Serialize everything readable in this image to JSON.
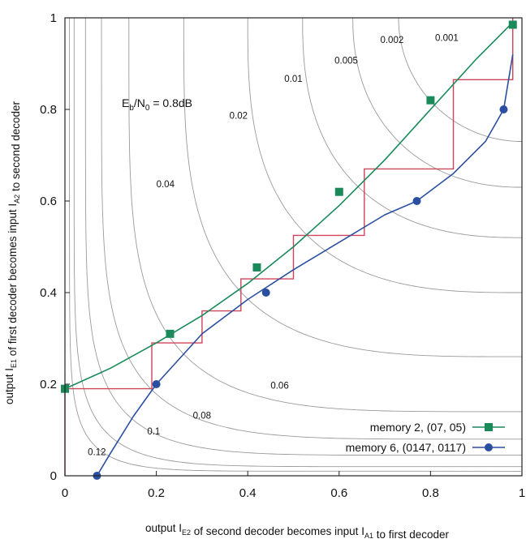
{
  "chart_data": {
    "type": "line",
    "title": "",
    "xlabel": "output I_E2 of second decoder becomes input I_A1 to first decoder",
    "ylabel": "output I_E1 of first decoder becomes input I_A2 to second decoder",
    "xlim": [
      0,
      1
    ],
    "ylim": [
      0,
      1
    ],
    "x_ticks": [
      "0",
      "0.2",
      "0.4",
      "0.6",
      "0.8",
      "1"
    ],
    "y_ticks": [
      "0",
      "0.2",
      "0.4",
      "0.6",
      "0.8",
      "1"
    ],
    "grid": false,
    "annotation": "E_b/N_0 = 0.8dB",
    "contour_labels": [
      "0.001",
      "0.002",
      "0.005",
      "0.01",
      "0.02",
      "0.04",
      "0.06",
      "0.08",
      "0.1",
      "0.12"
    ],
    "contour_levels": [
      0.12,
      0.1,
      0.08,
      0.06,
      0.04,
      0.02,
      0.01,
      0.005,
      0.002,
      0.001
    ],
    "legend_position": "bottom-right",
    "series": [
      {
        "name": "memory 2, (07, 05)",
        "color": "#1a8a5a",
        "marker": "square",
        "x": [
          0,
          0.1,
          0.2,
          0.3,
          0.4,
          0.5,
          0.6,
          0.7,
          0.8,
          0.9,
          0.98
        ],
        "y": [
          0.19,
          0.235,
          0.29,
          0.35,
          0.42,
          0.5,
          0.59,
          0.69,
          0.8,
          0.91,
          0.99
        ],
        "marker_x": [
          0,
          0.23,
          0.42,
          0.6,
          0.8,
          0.98
        ],
        "marker_y": [
          0.19,
          0.31,
          0.455,
          0.62,
          0.82,
          0.985
        ]
      },
      {
        "name": "memory 6, (0147, 0117)",
        "color": "#2b4fa0",
        "marker": "circle",
        "x": [
          0.07,
          0.1,
          0.15,
          0.2,
          0.3,
          0.4,
          0.5,
          0.6,
          0.7,
          0.77,
          0.85,
          0.92,
          0.96,
          0.98
        ],
        "y": [
          0.0,
          0.05,
          0.13,
          0.2,
          0.31,
          0.385,
          0.45,
          0.51,
          0.57,
          0.6,
          0.66,
          0.73,
          0.8,
          0.92
        ],
        "marker_x": [
          0.07,
          0.2,
          0.44,
          0.77,
          0.96
        ],
        "marker_y": [
          0.0,
          0.2,
          0.4,
          0.6,
          0.8
        ]
      }
    ],
    "trajectory": {
      "color": "#d0445a",
      "x": [
        0,
        0,
        0.19,
        0.19,
        0.3,
        0.3,
        0.385,
        0.385,
        0.5,
        0.5,
        0.655,
        0.655,
        0.85,
        0.85,
        0.98,
        0.98
      ],
      "y": [
        0,
        0.19,
        0.19,
        0.29,
        0.29,
        0.36,
        0.36,
        0.43,
        0.43,
        0.525,
        0.525,
        0.67,
        0.67,
        0.865,
        0.865,
        1.0
      ]
    }
  }
}
